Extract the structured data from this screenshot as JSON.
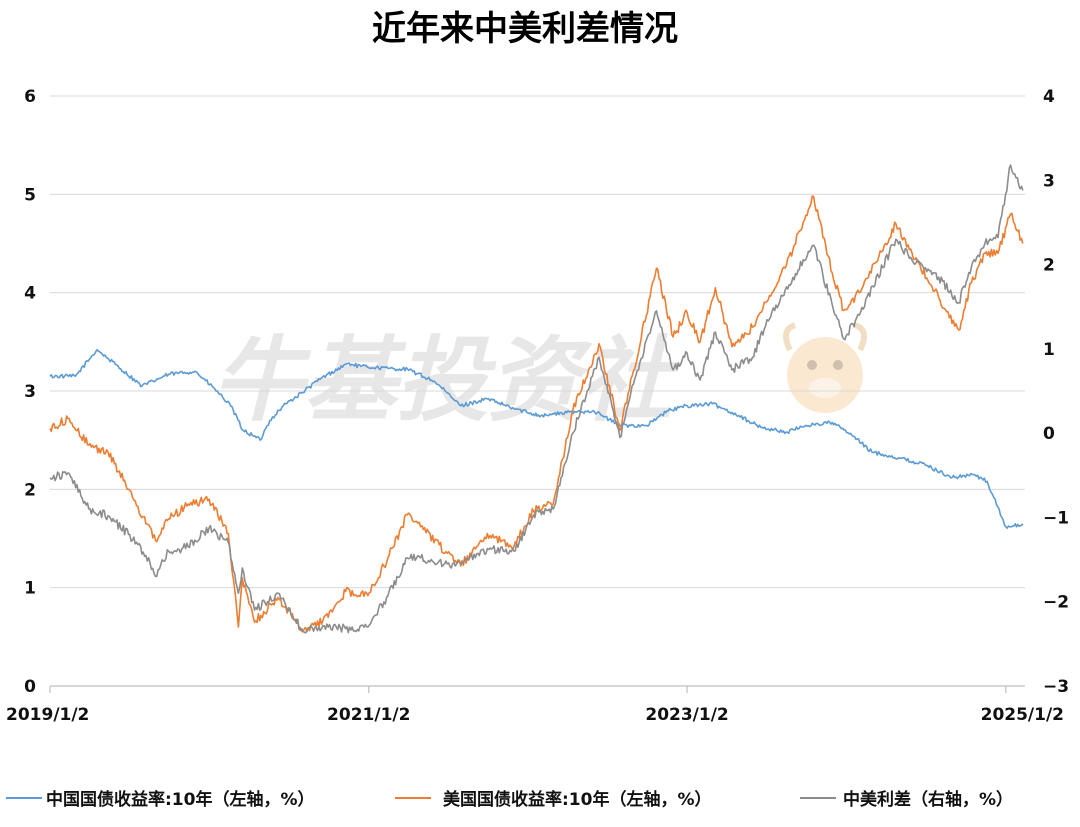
{
  "chart_data": {
    "type": "line",
    "title": "近年来中美利差情况",
    "watermark": "牛基投资社",
    "x_ticks": [
      "2019/1/2",
      "2021/1/2",
      "2023/1/2",
      "2025/1/2"
    ],
    "y_left_ticks": [
      "0",
      "1",
      "2",
      "3",
      "4",
      "5",
      "6"
    ],
    "y_right_ticks": [
      "−3",
      "−2",
      "−1",
      "0",
      "1",
      "2",
      "3",
      "4"
    ],
    "ylim_left": [
      0,
      6
    ],
    "ylim_right": [
      -3,
      4
    ],
    "xlim": [
      "2019-01-02",
      "2025-02-15"
    ],
    "grid": true,
    "legend_position": "bottom",
    "series": [
      {
        "name": "中国国债收益率:10年（左轴，%）",
        "axis": "left",
        "color": "#5b9bd5",
        "x": [
          "2019-01-02",
          "2019-03-01",
          "2019-04-20",
          "2019-06-01",
          "2019-08-01",
          "2019-10-01",
          "2019-12-01",
          "2020-01-15",
          "2020-02-20",
          "2020-03-20",
          "2020-04-10",
          "2020-04-28",
          "2020-05-20",
          "2020-06-20",
          "2020-08-01",
          "2020-09-15",
          "2020-11-15",
          "2020-12-15",
          "2021-02-15",
          "2021-04-01",
          "2021-06-01",
          "2021-08-01",
          "2021-10-01",
          "2021-12-01",
          "2022-02-01",
          "2022-04-01",
          "2022-06-01",
          "2022-08-01",
          "2022-10-01",
          "2022-11-20",
          "2023-01-02",
          "2023-03-01",
          "2023-05-01",
          "2023-06-20",
          "2023-08-20",
          "2023-10-01",
          "2023-12-01",
          "2024-01-15",
          "2024-03-01",
          "2024-05-01",
          "2024-07-01",
          "2024-09-01",
          "2024-10-20",
          "2024-11-20",
          "2025-01-02",
          "2025-01-15",
          "2025-02-10"
        ],
        "values": [
          3.15,
          3.15,
          3.42,
          3.27,
          3.05,
          3.17,
          3.2,
          3.02,
          2.85,
          2.6,
          2.55,
          2.5,
          2.7,
          2.85,
          2.98,
          3.13,
          3.28,
          3.25,
          3.23,
          3.22,
          3.1,
          2.85,
          2.92,
          2.82,
          2.75,
          2.78,
          2.8,
          2.65,
          2.65,
          2.8,
          2.85,
          2.87,
          2.75,
          2.63,
          2.58,
          2.65,
          2.68,
          2.55,
          2.38,
          2.32,
          2.25,
          2.12,
          2.15,
          2.08,
          1.62,
          1.62,
          1.65
        ]
      },
      {
        "name": "美国国债收益率:10年（左轴，%）",
        "axis": "left",
        "color": "#ed7d31",
        "x": [
          "2019-01-02",
          "2019-02-15",
          "2019-04-01",
          "2019-05-15",
          "2019-07-01",
          "2019-08-10",
          "2019-09-01",
          "2019-10-01",
          "2019-11-15",
          "2020-01-02",
          "2020-02-15",
          "2020-03-09",
          "2020-03-18",
          "2020-04-15",
          "2020-06-08",
          "2020-08-04",
          "2020-10-01",
          "2020-11-10",
          "2020-12-31",
          "2021-02-15",
          "2021-03-31",
          "2021-05-01",
          "2021-07-01",
          "2021-08-01",
          "2021-10-01",
          "2021-12-01",
          "2022-01-15",
          "2022-03-01",
          "2022-04-15",
          "2022-06-14",
          "2022-08-01",
          "2022-09-01",
          "2022-10-24",
          "2022-12-01",
          "2023-01-02",
          "2023-02-01",
          "2023-03-08",
          "2023-04-15",
          "2023-06-01",
          "2023-07-01",
          "2023-08-15",
          "2023-10-19",
          "2023-12-01",
          "2023-12-27",
          "2024-02-01",
          "2024-04-25",
          "2024-06-01",
          "2024-08-01",
          "2024-09-16",
          "2024-10-15",
          "2024-11-15",
          "2024-12-15",
          "2025-01-13",
          "2025-02-10"
        ],
        "values": [
          2.62,
          2.72,
          2.45,
          2.38,
          2.0,
          1.65,
          1.48,
          1.7,
          1.85,
          1.9,
          1.55,
          0.6,
          1.1,
          0.65,
          0.9,
          0.55,
          0.7,
          0.96,
          0.92,
          1.3,
          1.74,
          1.62,
          1.35,
          1.22,
          1.55,
          1.42,
          1.78,
          1.85,
          2.8,
          3.48,
          2.6,
          3.2,
          4.25,
          3.55,
          3.8,
          3.5,
          4.05,
          3.45,
          3.65,
          3.9,
          4.25,
          4.98,
          4.2,
          3.82,
          4.0,
          4.7,
          4.4,
          3.95,
          3.62,
          4.1,
          4.4,
          4.4,
          4.8,
          4.5
        ]
      },
      {
        "name": "中美利差（右轴，%）",
        "axis": "right",
        "color": "#8c8c8c",
        "x": [
          "2019-01-02",
          "2019-02-15",
          "2019-04-01",
          "2019-05-15",
          "2019-07-01",
          "2019-08-10",
          "2019-09-01",
          "2019-10-01",
          "2019-11-15",
          "2020-01-02",
          "2020-02-15",
          "2020-03-09",
          "2020-03-18",
          "2020-04-15",
          "2020-06-08",
          "2020-08-04",
          "2020-10-01",
          "2020-11-10",
          "2020-12-31",
          "2021-02-15",
          "2021-03-31",
          "2021-05-01",
          "2021-07-01",
          "2021-08-01",
          "2021-10-01",
          "2021-12-01",
          "2022-01-15",
          "2022-03-01",
          "2022-04-15",
          "2022-06-14",
          "2022-08-01",
          "2022-09-01",
          "2022-10-24",
          "2022-12-01",
          "2023-01-02",
          "2023-02-01",
          "2023-03-08",
          "2023-04-15",
          "2023-06-01",
          "2023-07-01",
          "2023-08-15",
          "2023-10-19",
          "2023-12-01",
          "2023-12-27",
          "2024-02-01",
          "2024-04-25",
          "2024-06-01",
          "2024-08-01",
          "2024-09-16",
          "2024-10-15",
          "2024-11-15",
          "2024-12-15",
          "2025-01-13",
          "2025-02-10"
        ],
        "values": [
          -0.53,
          -0.48,
          -0.9,
          -0.98,
          -1.2,
          -1.45,
          -1.7,
          -1.4,
          -1.35,
          -1.12,
          -1.3,
          -1.9,
          -1.6,
          -2.1,
          -1.9,
          -2.35,
          -2.3,
          -2.32,
          -2.3,
          -1.93,
          -1.48,
          -1.48,
          -1.55,
          -1.55,
          -1.37,
          -1.4,
          -0.97,
          -0.9,
          0.0,
          0.9,
          -0.05,
          0.58,
          1.45,
          0.75,
          0.95,
          0.63,
          1.2,
          0.75,
          0.9,
          1.27,
          1.7,
          2.23,
          1.52,
          1.12,
          1.4,
          2.3,
          2.05,
          1.85,
          1.55,
          1.97,
          2.25,
          2.32,
          3.18,
          2.88
        ]
      }
    ]
  }
}
